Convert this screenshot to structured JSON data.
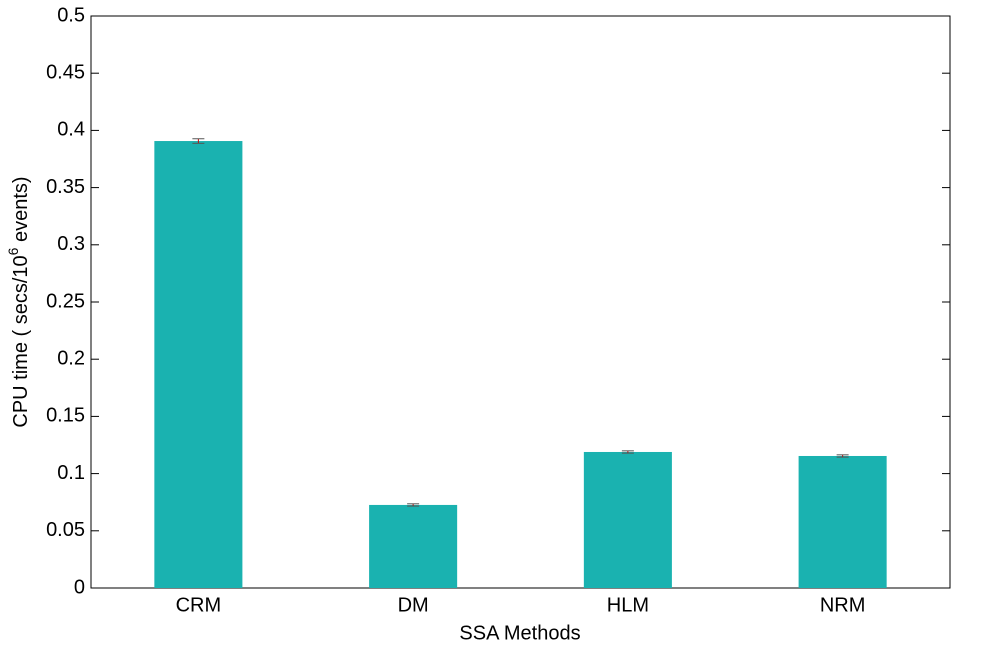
{
  "chart_data": {
    "type": "bar",
    "categories": [
      "CRM",
      "DM",
      "HLM",
      "NRM"
    ],
    "values": [
      0.3907,
      0.0726,
      0.1189,
      0.1154
    ],
    "errors": [
      0.002,
      0.001,
      0.001,
      0.001
    ],
    "color": "#1ab2b0",
    "error_color": "#cc0000",
    "ylim": [
      0,
      0.5
    ],
    "yticks": [
      0,
      0.05,
      0.1,
      0.15,
      0.2,
      0.25,
      0.3,
      0.35,
      0.4,
      0.45,
      0.5
    ],
    "xlabel": "SSA Methods",
    "ylabel": "CPU time ( secs/10",
    "ylabel_sup": "6",
    "ylabel_end": " events)",
    "grid": false
  }
}
